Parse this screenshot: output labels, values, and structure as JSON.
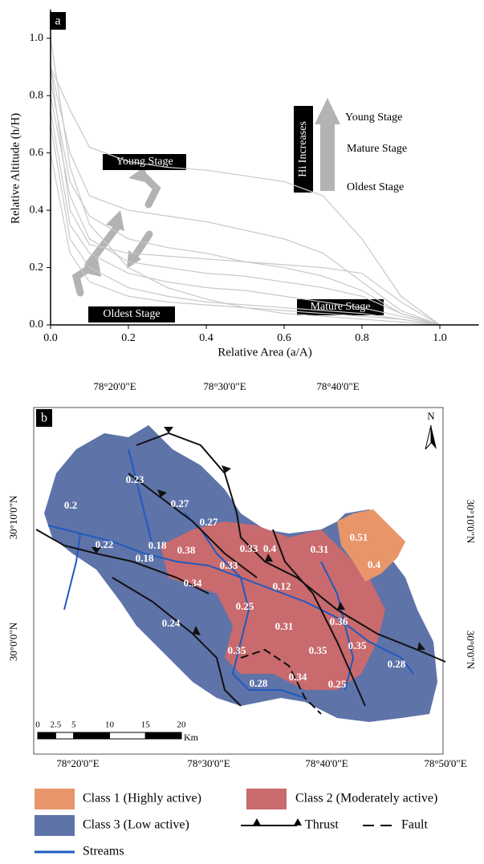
{
  "chart_data": {
    "type": "line",
    "panel_label": "a",
    "xlabel": "Relative Area (a/A)",
    "ylabel": "Relative Altitude (h/H)",
    "x": [
      0,
      0.05,
      0.1,
      0.2,
      0.3,
      0.4,
      0.5,
      0.6,
      0.7,
      0.8,
      0.9,
      1.0
    ],
    "series": [
      {
        "color": "#c8c8c8",
        "values": [
          1.0,
          0.55,
          0.35,
          0.2,
          0.13,
          0.09,
          0.06,
          0.04,
          0.03,
          0.02,
          0.01,
          0
        ]
      },
      {
        "color": "#c8c8c8",
        "values": [
          0.9,
          0.75,
          0.62,
          0.57,
          0.55,
          0.54,
          0.52,
          0.5,
          0.45,
          0.3,
          0.1,
          0
        ]
      },
      {
        "color": "#c8c8c8",
        "values": [
          0.9,
          0.6,
          0.45,
          0.4,
          0.38,
          0.36,
          0.33,
          0.3,
          0.25,
          0.15,
          0.05,
          0
        ]
      },
      {
        "color": "#c8c8c8",
        "values": [
          0.85,
          0.5,
          0.38,
          0.3,
          0.27,
          0.25,
          0.22,
          0.2,
          0.17,
          0.12,
          0.04,
          0
        ]
      },
      {
        "color": "#c8c8c8",
        "values": [
          0.8,
          0.45,
          0.3,
          0.22,
          0.2,
          0.18,
          0.17,
          0.15,
          0.13,
          0.1,
          0.04,
          0
        ]
      },
      {
        "color": "#c8c8c8",
        "values": [
          0.75,
          0.35,
          0.25,
          0.18,
          0.15,
          0.13,
          0.12,
          0.1,
          0.08,
          0.06,
          0.03,
          0
        ]
      },
      {
        "color": "#c8c8c8",
        "values": [
          0.7,
          0.3,
          0.2,
          0.13,
          0.1,
          0.08,
          0.07,
          0.06,
          0.05,
          0.04,
          0.02,
          0
        ]
      },
      {
        "color": "#c8c8c8",
        "values": [
          0.6,
          0.25,
          0.15,
          0.1,
          0.08,
          0.07,
          0.06,
          0.05,
          0.04,
          0.03,
          0.02,
          0
        ]
      },
      {
        "color": "#c8c8c8",
        "values": [
          0.9,
          0.4,
          0.28,
          0.25,
          0.24,
          0.23,
          0.22,
          0.21,
          0.2,
          0.18,
          0.08,
          0
        ]
      }
    ],
    "xlim": [
      0,
      1.1
    ],
    "ylim": [
      0,
      1.1
    ],
    "xticks": [
      {
        "value": 0,
        "label": "0.0"
      },
      0.2,
      0.4,
      0.6,
      0.8,
      {
        "value": 1,
        "label": "1.0"
      }
    ],
    "yticks": [
      {
        "value": 0,
        "label": "0.0"
      },
      0.2,
      0.4,
      0.6,
      0.8,
      {
        "value": 1,
        "label": "1.0"
      }
    ],
    "stage_labels": [
      "Young Stage",
      "Oldest Stage",
      "Mature Stage"
    ],
    "hi_legend": {
      "label": "Hi Increases",
      "stages": [
        "Young Stage",
        "Mature Stage",
        "Oldest Stage"
      ]
    }
  },
  "map": {
    "panel_label": "b",
    "north": "N",
    "lon_top": [
      "78°20'0\"E",
      "78°30'0\"E",
      "78°40'0\"E"
    ],
    "lon_bottom": [
      "78°20'0\"E",
      "78°30'0\"E",
      "78°40'0\"E",
      "78°50'0\"E"
    ],
    "lat_left": [
      "30°10'0\"N",
      "30°0'0\"N"
    ],
    "lat_right": [
      "30°10'0\"N",
      "30°0'0\"N"
    ],
    "hi_values": [
      0.23,
      0.2,
      0.27,
      0.27,
      0.22,
      0.18,
      0.18,
      0.38,
      0.33,
      0.4,
      0.33,
      0.31,
      0.51,
      0.4,
      0.34,
      0.12,
      0.25,
      0.24,
      0.31,
      0.36,
      0.35,
      0.35,
      0.35,
      0.28,
      0.34,
      0.28,
      0.25
    ],
    "scale": {
      "ticks": [
        0,
        2.5,
        5,
        10,
        15,
        20
      ],
      "unit": "Km"
    },
    "legend": {
      "classes": [
        {
          "label": "Class 1 (Highly active)",
          "color": "#e8956a"
        },
        {
          "label": "Class 2 (Moderately active)",
          "color": "#c96a6e"
        },
        {
          "label": "Class 3 (Low active)",
          "color": "#5e73a8"
        }
      ],
      "thrust": "Thrust",
      "fault": "Fault",
      "streams": "Streams",
      "streams_color": "#1f5bbf"
    }
  }
}
